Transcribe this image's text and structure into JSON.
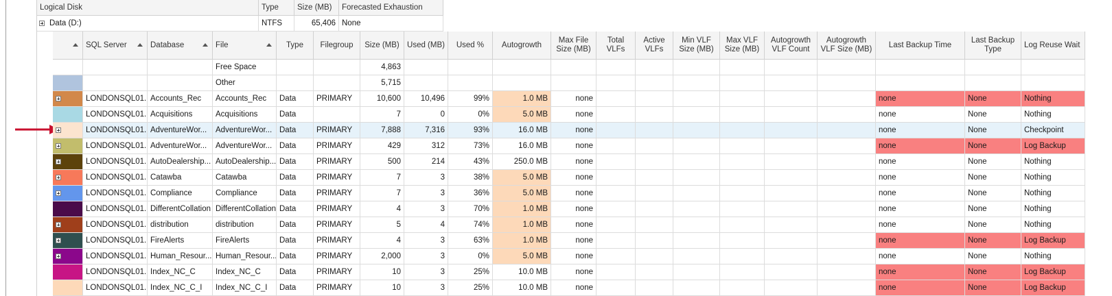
{
  "disk_header": {
    "columns": [
      "Logical Disk",
      "Type",
      "Size (MB)",
      "Forecasted Exhaustion"
    ],
    "row": [
      "Data (D:)",
      "NTFS",
      "65,406",
      "None"
    ]
  },
  "grid": {
    "columns": [
      {
        "label": "SQL Server",
        "sort": true
      },
      {
        "label": "Database",
        "sort": true
      },
      {
        "label": "File",
        "sort": true
      },
      {
        "label": "Type"
      },
      {
        "label": "Filegroup"
      },
      {
        "label": "Size (MB)"
      },
      {
        "label": "Used (MB)"
      },
      {
        "label": "Used %"
      },
      {
        "label": "Autogrowth"
      },
      {
        "label": "Max File Size (MB)"
      },
      {
        "label": "Total VLFs"
      },
      {
        "label": "Active VLFs"
      },
      {
        "label": "Min VLF Size (MB)"
      },
      {
        "label": "Max VLF Size (MB)"
      },
      {
        "label": "Autogrowth VLF Count"
      },
      {
        "label": "Autogrowth VLF Size (MB)"
      },
      {
        "label": "Last Backup Time"
      },
      {
        "label": "Last Backup Type"
      },
      {
        "label": "Log Reuse Wait"
      }
    ],
    "rows": [
      {
        "expandable": false,
        "cells": [
          null,
          null,
          "Free Space",
          null,
          null,
          "4,863",
          null,
          null,
          null,
          null,
          null,
          null,
          null,
          null,
          null,
          null,
          null,
          null,
          null
        ]
      },
      {
        "color": "#b0c4de",
        "expandable": false,
        "cells": [
          null,
          null,
          "Other",
          null,
          null,
          "5,715",
          null,
          null,
          null,
          null,
          null,
          null,
          null,
          null,
          null,
          null,
          null,
          null,
          null
        ]
      },
      {
        "color": "#d2884a",
        "expandable": true,
        "autogrowth_color": "#fdd9b9",
        "backup_color": "#f98080",
        "cells": [
          "LONDONSQL01...",
          "Accounts_Rec",
          "Accounts_Rec",
          "Data",
          "PRIMARY",
          "10,600",
          "10,496",
          "99%",
          "1.0 MB",
          "none",
          null,
          null,
          null,
          null,
          null,
          null,
          "none",
          "None",
          "Nothing"
        ]
      },
      {
        "color": "#a9d9e4",
        "expandable": false,
        "autogrowth_color": "#fdd9b9",
        "cells": [
          "LONDONSQL01...",
          "Acquisitions",
          "Acquisitions",
          "Data",
          null,
          "7",
          "0",
          "0%",
          "5.0 MB",
          "none",
          null,
          null,
          null,
          null,
          null,
          null,
          "none",
          "None",
          "Nothing"
        ]
      },
      {
        "color": "#fce4cf",
        "expandable": true,
        "selected": true,
        "cells": [
          "LONDONSQL01...",
          "AdventureWor...",
          "AdventureWor...",
          "Data",
          "PRIMARY",
          "7,888",
          "7,316",
          "93%",
          "16.0 MB",
          "none",
          null,
          null,
          null,
          null,
          null,
          null,
          "none",
          "None",
          "Checkpoint"
        ]
      },
      {
        "color": "#c2bd6c",
        "expandable": true,
        "backup_color": "#f98080",
        "cells": [
          "LONDONSQL01...",
          "AdventureWor...",
          "AdventureWor...",
          "Data",
          "PRIMARY",
          "429",
          "312",
          "73%",
          "16.0 MB",
          "none",
          null,
          null,
          null,
          null,
          null,
          null,
          "none",
          "None",
          "Log Backup"
        ]
      },
      {
        "color": "#5c420b",
        "expandable": true,
        "cells": [
          "LONDONSQL01...",
          "AutoDealership...",
          "AutoDealership...",
          "Data",
          "PRIMARY",
          "500",
          "214",
          "43%",
          "250.0 MB",
          "none",
          null,
          null,
          null,
          null,
          null,
          null,
          "none",
          "None",
          "Nothing"
        ]
      },
      {
        "color": "#f7795a",
        "expandable": true,
        "autogrowth_color": "#fdd9b9",
        "cells": [
          "LONDONSQL01...",
          "Catawba",
          "Catawba",
          "Data",
          "PRIMARY",
          "7",
          "3",
          "38%",
          "5.0 MB",
          "none",
          null,
          null,
          null,
          null,
          null,
          null,
          "none",
          "None",
          "Nothing"
        ]
      },
      {
        "color": "#6396ec",
        "expandable": true,
        "autogrowth_color": "#fdd9b9",
        "cells": [
          "LONDONSQL01...",
          "Compliance",
          "Compliance",
          "Data",
          "PRIMARY",
          "7",
          "3",
          "36%",
          "5.0 MB",
          "none",
          null,
          null,
          null,
          null,
          null,
          null,
          "none",
          "None",
          "Nothing"
        ]
      },
      {
        "color": "#4a0b4a",
        "expandable": false,
        "autogrowth_color": "#fdd9b9",
        "cells": [
          "LONDONSQL01...",
          "DifferentCollation",
          "DifferentCollation",
          "Data",
          "PRIMARY",
          "4",
          "3",
          "70%",
          "1.0 MB",
          "none",
          null,
          null,
          null,
          null,
          null,
          null,
          "none",
          "None",
          "Nothing"
        ]
      },
      {
        "color": "#9f3f1b",
        "expandable": true,
        "autogrowth_color": "#fdd9b9",
        "cells": [
          "LONDONSQL01...",
          "distribution",
          "distribution",
          "Data",
          "PRIMARY",
          "5",
          "4",
          "74%",
          "1.0 MB",
          "none",
          null,
          null,
          null,
          null,
          null,
          null,
          "none",
          "None",
          "Nothing"
        ]
      },
      {
        "color": "#2f4f4f",
        "expandable": true,
        "autogrowth_color": "#fdd9b9",
        "backup_color": "#f98080",
        "cells": [
          "LONDONSQL01...",
          "FireAlerts",
          "FireAlerts",
          "Data",
          "PRIMARY",
          "4",
          "3",
          "63%",
          "1.0 MB",
          "none",
          null,
          null,
          null,
          null,
          null,
          null,
          "none",
          "None",
          "Log Backup"
        ]
      },
      {
        "color": "#8b078b",
        "expandable": true,
        "autogrowth_color": "#fdd9b9",
        "cells": [
          "LONDONSQL01...",
          "Human_Resour...",
          "Human_Resour...",
          "Data",
          "PRIMARY",
          "2,000",
          "3",
          "0%",
          "5.0 MB",
          "none",
          null,
          null,
          null,
          null,
          null,
          null,
          "none",
          "None",
          "Nothing"
        ]
      },
      {
        "color": "#c71585",
        "expandable": false,
        "backup_color": "#f98080",
        "cells": [
          "LONDONSQL01...",
          "Index_NC_C",
          "Index_NC_C",
          "Data",
          "PRIMARY",
          "10",
          "3",
          "25%",
          "10.0 MB",
          "none",
          null,
          null,
          null,
          null,
          null,
          null,
          "none",
          "None",
          "Log Backup"
        ]
      },
      {
        "color": "#fdd9b9",
        "expandable": false,
        "backup_color": "#f98080",
        "cells": [
          "LONDONSQL01...",
          "Index_NC_C_I",
          "Index_NC_C_I",
          "Data",
          "PRIMARY",
          "10",
          "3",
          "25%",
          "10.0 MB",
          "none",
          null,
          null,
          null,
          null,
          null,
          null,
          "none",
          "None",
          "Log Backup"
        ]
      }
    ]
  }
}
